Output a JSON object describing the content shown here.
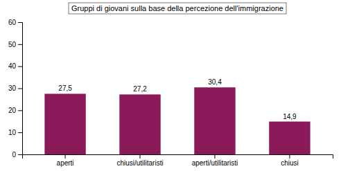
{
  "chart_data": {
    "type": "bar",
    "title": "Gruppi di giovani sulla base della percezione dell'immigrazione",
    "categories": [
      "aperti",
      "chiusi/utilitaristi",
      "aperti/utilitaristi",
      "chiusi"
    ],
    "values": [
      27.5,
      27.2,
      30.4,
      14.9
    ],
    "value_labels": [
      "27,5",
      "27,2",
      "30,4",
      "14,9"
    ],
    "color": "#8B1A5A",
    "ylim": [
      0,
      60
    ],
    "yticks": [
      0,
      10,
      20,
      30,
      40,
      50,
      60
    ],
    "grid": false,
    "data_labels": true
  }
}
